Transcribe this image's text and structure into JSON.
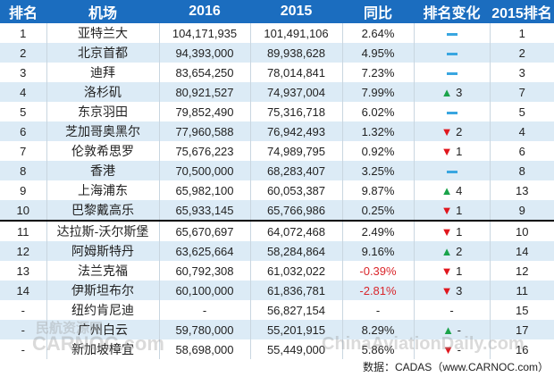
{
  "headers": [
    "排名",
    "机场",
    "2016",
    "2015",
    "同比",
    "排名变化",
    "2015排名"
  ],
  "rows": [
    {
      "rank": "1",
      "airport": "亚特兰大",
      "y2016": "104,171,935",
      "y2015": "101,491,106",
      "yoy": "2.64%",
      "change_dir": "none",
      "change": "",
      "rank2015": "1"
    },
    {
      "rank": "2",
      "airport": "北京首都",
      "y2016": "94,393,000",
      "y2015": "89,938,628",
      "yoy": "4.95%",
      "change_dir": "none",
      "change": "",
      "rank2015": "2"
    },
    {
      "rank": "3",
      "airport": "迪拜",
      "y2016": "83,654,250",
      "y2015": "78,014,841",
      "yoy": "7.23%",
      "change_dir": "none",
      "change": "",
      "rank2015": "3"
    },
    {
      "rank": "4",
      "airport": "洛杉矶",
      "y2016": "80,921,527",
      "y2015": "74,937,004",
      "yoy": "7.99%",
      "change_dir": "up",
      "change": "3",
      "rank2015": "7"
    },
    {
      "rank": "5",
      "airport": "东京羽田",
      "y2016": "79,852,490",
      "y2015": "75,316,718",
      "yoy": "6.02%",
      "change_dir": "none",
      "change": "",
      "rank2015": "5"
    },
    {
      "rank": "6",
      "airport": "芝加哥奥黑尔",
      "y2016": "77,960,588",
      "y2015": "76,942,493",
      "yoy": "1.32%",
      "change_dir": "down",
      "change": "2",
      "rank2015": "4"
    },
    {
      "rank": "7",
      "airport": "伦敦希思罗",
      "y2016": "75,676,223",
      "y2015": "74,989,795",
      "yoy": "0.92%",
      "change_dir": "down",
      "change": "1",
      "rank2015": "6"
    },
    {
      "rank": "8",
      "airport": "香港",
      "y2016": "70,500,000",
      "y2015": "68,283,407",
      "yoy": "3.25%",
      "change_dir": "none",
      "change": "",
      "rank2015": "8"
    },
    {
      "rank": "9",
      "airport": "上海浦东",
      "y2016": "65,982,100",
      "y2015": "60,053,387",
      "yoy": "9.87%",
      "change_dir": "up",
      "change": "4",
      "rank2015": "13"
    },
    {
      "rank": "10",
      "airport": "巴黎戴高乐",
      "y2016": "65,933,145",
      "y2015": "65,766,986",
      "yoy": "0.25%",
      "change_dir": "down",
      "change": "1",
      "rank2015": "9"
    },
    {
      "rank": "11",
      "airport": "达拉斯-沃尔斯堡",
      "y2016": "65,670,697",
      "y2015": "64,072,468",
      "yoy": "2.49%",
      "change_dir": "down",
      "change": "1",
      "rank2015": "10"
    },
    {
      "rank": "12",
      "airport": "阿姆斯特丹",
      "y2016": "63,625,664",
      "y2015": "58,284,864",
      "yoy": "9.16%",
      "change_dir": "up",
      "change": "2",
      "rank2015": "14"
    },
    {
      "rank": "13",
      "airport": "法兰克福",
      "y2016": "60,792,308",
      "y2015": "61,032,022",
      "yoy": "-0.39%",
      "change_dir": "down",
      "change": "1",
      "rank2015": "12"
    },
    {
      "rank": "14",
      "airport": "伊斯坦布尔",
      "y2016": "60,100,000",
      "y2015": "61,836,781",
      "yoy": "-2.81%",
      "change_dir": "down",
      "change": "3",
      "rank2015": "11"
    },
    {
      "rank": "-",
      "airport": "纽约肯尼迪",
      "y2016": "-",
      "y2015": "56,827,154",
      "yoy": "-",
      "change_dir": "text",
      "change": "-",
      "rank2015": "15"
    },
    {
      "rank": "-",
      "airport": "广州白云",
      "y2016": "59,780,000",
      "y2015": "55,201,915",
      "yoy": "8.29%",
      "change_dir": "up",
      "change": "-",
      "rank2015": "17"
    },
    {
      "rank": "-",
      "airport": "新加坡樟宜",
      "y2016": "58,698,000",
      "y2015": "55,449,000",
      "yoy": "5.86%",
      "change_dir": "down",
      "change": "-",
      "rank2015": "16"
    }
  ],
  "footer": "数据：CADAS（www.CARNOC.com）",
  "watermarks": [
    "民航资源网",
    "CARNOC.com",
    "ChinaAviationDaily.com"
  ]
}
